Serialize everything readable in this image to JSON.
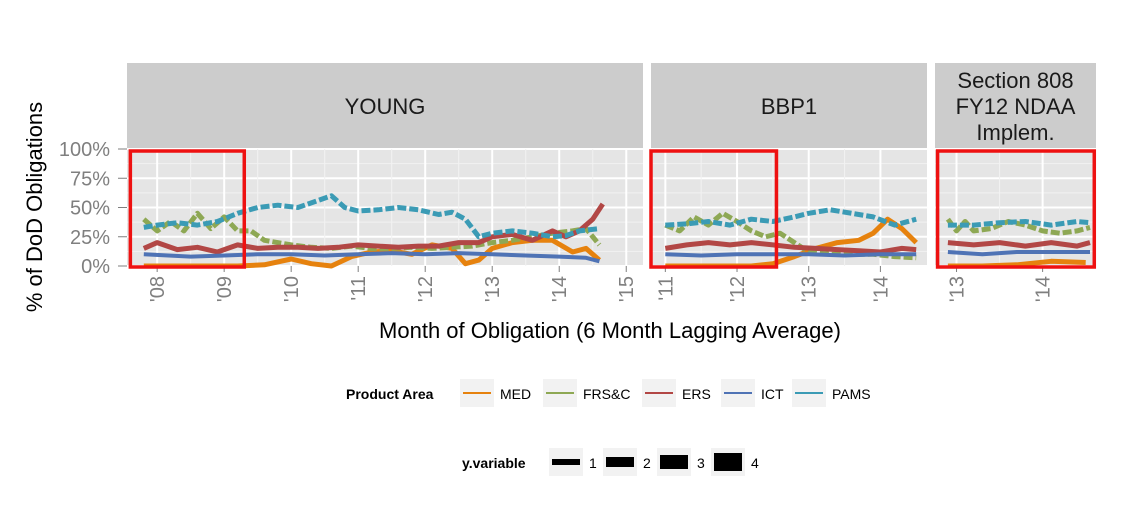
{
  "chart_data": {
    "type": "line",
    "xlabel": "Month of Obligation (6 Month Lagging Average)",
    "ylabel": "% of DoD Obligations",
    "ylim": [
      0,
      1
    ],
    "y_ticks": [
      "0%",
      "25%",
      "50%",
      "75%",
      "100%"
    ],
    "y_tick_values": [
      0,
      0.25,
      0.5,
      0.75,
      1
    ],
    "grid": true,
    "legend_position": "bottom",
    "legend": {
      "title": "Product Area",
      "entries": [
        "MED",
        "FRS&C",
        "ERS",
        "ICT",
        "PAMS"
      ],
      "size_title": "y.variable",
      "size_entries": [
        "1",
        "2",
        "3",
        "4"
      ]
    },
    "colors": {
      "MED": "#e6820e",
      "FRS&C": "#8ea854",
      "ERS": "#b24745",
      "ICT": "#4f73b5",
      "PAMS": "#3b9bb5",
      "highlight": "#ee1111",
      "panel": "#e5e5e5",
      "strip": "#cccccc"
    },
    "panels": [
      {
        "title": "YOUNG",
        "x_ticks": [
          "'08",
          "'09",
          "'10",
          "'11",
          "'12",
          "'13",
          "'14",
          "'15"
        ],
        "x_tick_values": [
          2008,
          2009,
          2010,
          2011,
          2012,
          2013,
          2014,
          2015
        ],
        "xlim": [
          2007.55,
          2015.25
        ],
        "highlight_x": [
          2007.6,
          2009.3
        ],
        "series": [
          {
            "name": "MED",
            "x": [
              2007.8,
              2008.3,
              2008.8,
              2009.2,
              2009.6,
              2010.0,
              2010.3,
              2010.6,
              2010.9,
              2011.2,
              2011.5,
              2011.8,
              2012.1,
              2012.4,
              2012.6,
              2012.8,
              2013.0,
              2013.3,
              2013.6,
              2013.9,
              2014.2,
              2014.4,
              2014.6
            ],
            "values": [
              0.0,
              0.0,
              0.0,
              0.0,
              0.01,
              0.06,
              0.02,
              0.0,
              0.08,
              0.12,
              0.13,
              0.1,
              0.18,
              0.15,
              0.02,
              0.05,
              0.15,
              0.2,
              0.22,
              0.22,
              0.12,
              0.15,
              0.05
            ]
          },
          {
            "name": "FRS&C",
            "x": [
              2007.8,
              2008.0,
              2008.2,
              2008.4,
              2008.6,
              2008.8,
              2009.0,
              2009.2,
              2009.4,
              2009.6,
              2010.0,
              2010.3,
              2010.6,
              2010.9,
              2011.2,
              2011.5,
              2011.8,
              2012.1,
              2012.4,
              2012.7,
              2013.0,
              2013.3,
              2013.6,
              2013.9,
              2014.2,
              2014.4,
              2014.6
            ],
            "values": [
              0.4,
              0.3,
              0.38,
              0.3,
              0.45,
              0.32,
              0.42,
              0.3,
              0.3,
              0.22,
              0.18,
              0.16,
              0.15,
              0.17,
              0.15,
              0.15,
              0.16,
              0.15,
              0.16,
              0.17,
              0.2,
              0.22,
              0.25,
              0.28,
              0.3,
              0.32,
              0.18
            ]
          },
          {
            "name": "ERS",
            "x": [
              2007.8,
              2008.0,
              2008.3,
              2008.6,
              2008.9,
              2009.2,
              2009.5,
              2009.8,
              2010.1,
              2010.4,
              2010.7,
              2011.0,
              2011.3,
              2011.6,
              2011.9,
              2012.2,
              2012.5,
              2012.8,
              2013.0,
              2013.3,
              2013.6,
              2013.9,
              2014.1,
              2014.3,
              2014.5,
              2014.65
            ],
            "values": [
              0.15,
              0.2,
              0.14,
              0.16,
              0.12,
              0.18,
              0.15,
              0.16,
              0.16,
              0.15,
              0.16,
              0.18,
              0.17,
              0.16,
              0.17,
              0.17,
              0.2,
              0.2,
              0.25,
              0.27,
              0.22,
              0.3,
              0.25,
              0.3,
              0.4,
              0.53
            ]
          },
          {
            "name": "ICT",
            "x": [
              2007.8,
              2008.5,
              2009.0,
              2009.5,
              2010.0,
              2010.5,
              2011.0,
              2011.5,
              2012.0,
              2012.5,
              2013.0,
              2013.5,
              2014.0,
              2014.4,
              2014.6
            ],
            "values": [
              0.1,
              0.08,
              0.09,
              0.1,
              0.1,
              0.09,
              0.1,
              0.11,
              0.1,
              0.11,
              0.1,
              0.09,
              0.08,
              0.07,
              0.04
            ]
          },
          {
            "name": "PAMS",
            "x": [
              2007.8,
              2008.0,
              2008.3,
              2008.6,
              2008.9,
              2009.2,
              2009.5,
              2009.8,
              2010.1,
              2010.4,
              2010.6,
              2010.8,
              2011.0,
              2011.3,
              2011.6,
              2011.9,
              2012.2,
              2012.4,
              2012.6,
              2012.8,
              2013.0,
              2013.3,
              2013.6,
              2013.9,
              2014.1,
              2014.3,
              2014.6
            ],
            "values": [
              0.33,
              0.35,
              0.37,
              0.35,
              0.38,
              0.45,
              0.5,
              0.52,
              0.5,
              0.56,
              0.6,
              0.5,
              0.47,
              0.48,
              0.5,
              0.48,
              0.44,
              0.46,
              0.4,
              0.25,
              0.28,
              0.3,
              0.28,
              0.25,
              0.26,
              0.3,
              0.32
            ]
          }
        ]
      },
      {
        "title": "BBP1",
        "x_ticks": [
          "'11",
          "'12",
          "'13",
          "'14"
        ],
        "x_tick_values": [
          2011,
          2012,
          2013,
          2014
        ],
        "xlim": [
          2010.8,
          2014.65
        ],
        "highlight_x": [
          2010.8,
          2012.55
        ],
        "series": [
          {
            "name": "MED",
            "x": [
              2011.0,
              2011.4,
              2011.8,
              2012.2,
              2012.5,
              2012.8,
              2013.1,
              2013.4,
              2013.7,
              2013.9,
              2014.1,
              2014.3,
              2014.5
            ],
            "values": [
              0.0,
              0.0,
              0.0,
              0.0,
              0.02,
              0.08,
              0.15,
              0.2,
              0.22,
              0.28,
              0.4,
              0.32,
              0.2
            ]
          },
          {
            "name": "FRS&C",
            "x": [
              2011.0,
              2011.2,
              2011.4,
              2011.6,
              2011.8,
              2012.0,
              2012.2,
              2012.4,
              2012.6,
              2012.8,
              2013.0,
              2013.3,
              2013.6,
              2013.9,
              2014.2,
              2014.5
            ],
            "values": [
              0.35,
              0.3,
              0.42,
              0.35,
              0.45,
              0.38,
              0.3,
              0.25,
              0.28,
              0.2,
              0.12,
              0.1,
              0.1,
              0.1,
              0.08,
              0.07
            ]
          },
          {
            "name": "ERS",
            "x": [
              2011.0,
              2011.3,
              2011.6,
              2011.9,
              2012.2,
              2012.5,
              2012.8,
              2013.1,
              2013.4,
              2013.7,
              2014.0,
              2014.3,
              2014.5
            ],
            "values": [
              0.15,
              0.18,
              0.2,
              0.18,
              0.2,
              0.18,
              0.16,
              0.15,
              0.14,
              0.13,
              0.12,
              0.15,
              0.14
            ]
          },
          {
            "name": "ICT",
            "x": [
              2011.0,
              2011.5,
              2012.0,
              2012.5,
              2013.0,
              2013.5,
              2014.0,
              2014.5
            ],
            "values": [
              0.1,
              0.09,
              0.1,
              0.1,
              0.1,
              0.09,
              0.1,
              0.1
            ]
          },
          {
            "name": "PAMS",
            "x": [
              2011.0,
              2011.3,
              2011.6,
              2011.9,
              2012.2,
              2012.5,
              2012.8,
              2013.0,
              2013.3,
              2013.6,
              2013.9,
              2014.2,
              2014.5
            ],
            "values": [
              0.35,
              0.36,
              0.38,
              0.35,
              0.4,
              0.38,
              0.42,
              0.45,
              0.48,
              0.45,
              0.42,
              0.35,
              0.4
            ]
          }
        ]
      },
      {
        "title": "Section 808\nFY12 NDAA\nImplem.",
        "x_ticks": [
          "'13",
          "'14"
        ],
        "x_tick_values": [
          2013,
          2014
        ],
        "xlim": [
          2012.75,
          2014.62
        ],
        "highlight_x": [
          2012.78,
          2014.6
        ],
        "series": [
          {
            "name": "MED",
            "x": [
              2012.9,
              2013.3,
              2013.7,
              2014.1,
              2014.5
            ],
            "values": [
              0.0,
              0.0,
              0.01,
              0.04,
              0.03
            ]
          },
          {
            "name": "FRS&C",
            "x": [
              2012.9,
              2013.0,
              2013.1,
              2013.2,
              2013.4,
              2013.6,
              2013.8,
              2014.0,
              2014.2,
              2014.4,
              2014.55
            ],
            "values": [
              0.4,
              0.3,
              0.38,
              0.3,
              0.32,
              0.38,
              0.35,
              0.3,
              0.28,
              0.3,
              0.33
            ]
          },
          {
            "name": "ERS",
            "x": [
              2012.9,
              2013.2,
              2013.5,
              2013.8,
              2014.1,
              2014.4,
              2014.55
            ],
            "values": [
              0.2,
              0.18,
              0.2,
              0.17,
              0.2,
              0.17,
              0.2
            ]
          },
          {
            "name": "ICT",
            "x": [
              2012.9,
              2013.3,
              2013.7,
              2014.1,
              2014.55
            ],
            "values": [
              0.12,
              0.1,
              0.12,
              0.12,
              0.12
            ]
          },
          {
            "name": "PAMS",
            "x": [
              2012.9,
              2013.2,
              2013.5,
              2013.8,
              2014.1,
              2014.4,
              2014.55
            ],
            "values": [
              0.35,
              0.35,
              0.37,
              0.38,
              0.35,
              0.38,
              0.37
            ]
          }
        ]
      }
    ]
  }
}
